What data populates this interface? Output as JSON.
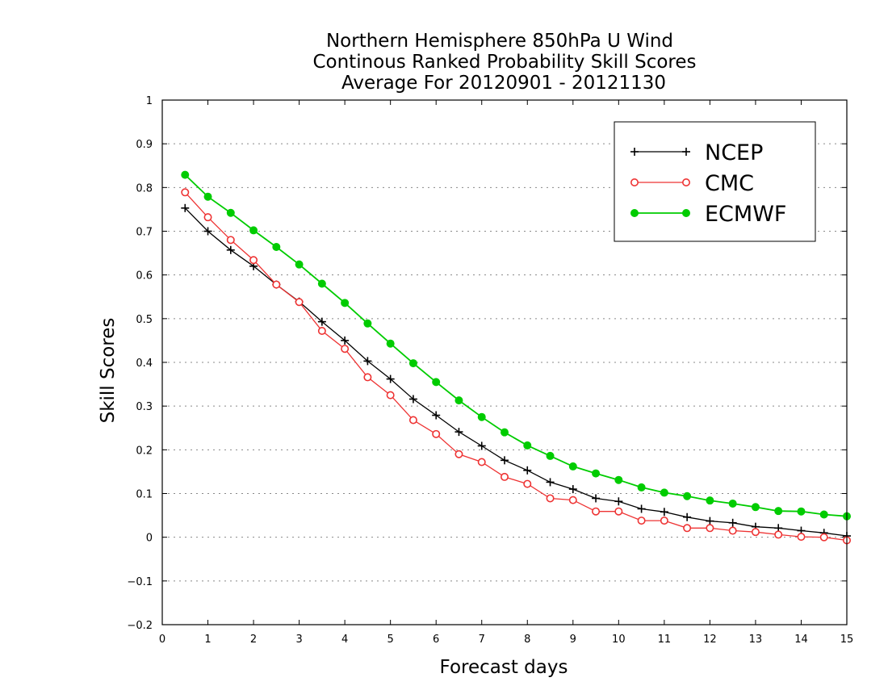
{
  "chart_data": {
    "type": "line",
    "title": [
      "Northern Hemisphere 850hPa U Wind",
      "Continous Ranked Probability Skill Scores",
      "Average For 20120901 - 20121130"
    ],
    "xlabel": "Forecast days",
    "ylabel": "Skill Scores",
    "xlim": [
      0,
      15
    ],
    "ylim": [
      -0.2,
      1
    ],
    "xticks": [
      0,
      1,
      2,
      3,
      4,
      5,
      6,
      7,
      8,
      9,
      10,
      11,
      12,
      13,
      14,
      15
    ],
    "yticks": [
      -0.2,
      -0.1,
      0,
      0.1,
      0.2,
      0.3,
      0.4,
      0.5,
      0.6,
      0.7,
      0.8,
      0.9,
      1
    ],
    "ytick_labels": [
      "−0.2",
      "−0.1",
      "0",
      "0.1",
      "0.2",
      "0.3",
      "0.4",
      "0.5",
      "0.6",
      "0.7",
      "0.8",
      "0.9",
      "1"
    ],
    "grid": "horizontal dotted",
    "legend_position": "top-right",
    "x": [
      0.5,
      1,
      1.5,
      2,
      2.5,
      3,
      3.5,
      4,
      4.5,
      5,
      5.5,
      6,
      6.5,
      7,
      7.5,
      8,
      8.5,
      9,
      9.5,
      10,
      10.5,
      11,
      11.5,
      12,
      12.5,
      13,
      13.5,
      14,
      14.5,
      15
    ],
    "series": [
      {
        "name": "NCEP",
        "color": "#000000",
        "marker": "plus",
        "values": [
          0.753,
          0.7,
          0.657,
          0.62,
          0.578,
          0.539,
          0.493,
          0.45,
          0.403,
          0.362,
          0.316,
          0.279,
          0.241,
          0.209,
          0.176,
          0.153,
          0.126,
          0.11,
          0.089,
          0.082,
          0.065,
          0.058,
          0.046,
          0.037,
          0.033,
          0.024,
          0.021,
          0.015,
          0.01,
          0.003
        ]
      },
      {
        "name": "CMC",
        "color": "#ee3333",
        "marker": "circle-open",
        "values": [
          0.789,
          0.732,
          0.68,
          0.634,
          0.578,
          0.538,
          0.472,
          0.431,
          0.366,
          0.325,
          0.268,
          0.236,
          0.19,
          0.172,
          0.138,
          0.122,
          0.089,
          0.085,
          0.059,
          0.059,
          0.038,
          0.038,
          0.021,
          0.021,
          0.015,
          0.012,
          0.006,
          0.001,
          0.0,
          -0.007
        ]
      },
      {
        "name": "ECMWF",
        "color": "#00cc00",
        "marker": "circle-filled",
        "values": [
          0.829,
          0.779,
          0.742,
          0.702,
          0.664,
          0.624,
          0.58,
          0.536,
          0.489,
          0.443,
          0.398,
          0.355,
          0.313,
          0.275,
          0.24,
          0.21,
          0.186,
          0.162,
          0.146,
          0.131,
          0.114,
          0.102,
          0.094,
          0.084,
          0.077,
          0.069,
          0.06,
          0.059,
          0.052,
          0.048
        ]
      }
    ]
  }
}
